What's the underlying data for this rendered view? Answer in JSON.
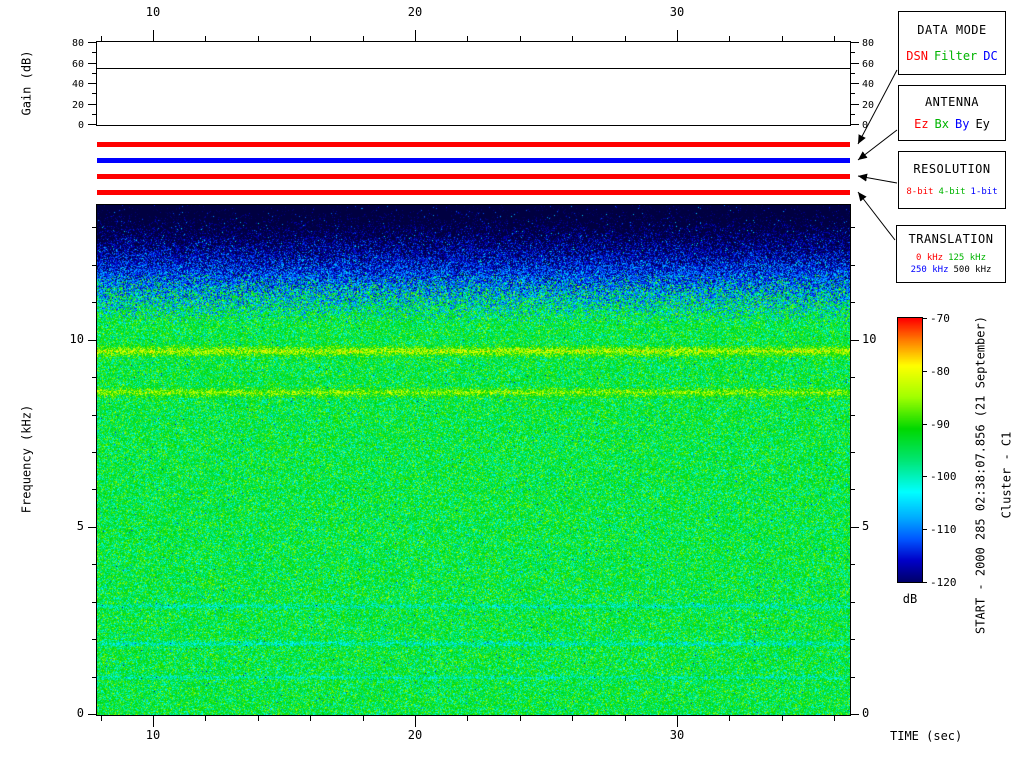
{
  "figure": {
    "time_axis_label": "TIME (sec)",
    "colorbar_unit": "dB",
    "start_label": "START - 2000 285 02:38:07.856 (21 September)",
    "spacecraft_label": "Cluster - C1"
  },
  "legend_boxes": [
    {
      "title": "DATA MODE",
      "rows": [
        [
          {
            "label": "DSN",
            "color": "#ff0000"
          },
          {
            "label": "Filter",
            "color": "#00b400"
          },
          {
            "label": "DC",
            "color": "#0000ff"
          }
        ]
      ]
    },
    {
      "title": "ANTENNA",
      "rows": [
        [
          {
            "label": "Ez",
            "color": "#ff0000"
          },
          {
            "label": "Bx",
            "color": "#00b400"
          },
          {
            "label": "By",
            "color": "#0000ff"
          },
          {
            "label": "Ey",
            "color": "#000000"
          }
        ]
      ]
    },
    {
      "title": "RESOLUTION",
      "rows": [
        [
          {
            "label": "8-bit",
            "color": "#ff0000"
          },
          {
            "label": "4-bit",
            "color": "#00b400"
          },
          {
            "label": "1-bit",
            "color": "#0000ff"
          }
        ]
      ]
    },
    {
      "title": "TRANSLATION",
      "rows": [
        [
          {
            "label": "0 kHz",
            "color": "#ff0000"
          },
          {
            "label": "125 kHz",
            "color": "#00b400"
          }
        ],
        [
          {
            "label": "250 kHz",
            "color": "#0000ff"
          },
          {
            "label": "500 kHz",
            "color": "#000000"
          }
        ]
      ]
    }
  ],
  "status_bars": [
    {
      "name": "data-mode-status-bar",
      "value": "DSN",
      "color": "#ff0000"
    },
    {
      "name": "antenna-status-bar",
      "value": "By",
      "color": "#0000ff"
    },
    {
      "name": "resolution-status-bar",
      "value": "8-bit",
      "color": "#ff0000"
    },
    {
      "name": "translation-status-bar",
      "value": "0 kHz",
      "color": "#ff0000"
    }
  ],
  "chart_data": [
    {
      "id": "gain-plot",
      "type": "line",
      "ylabel": "Gain (dB)",
      "y_range": [
        0,
        80
      ],
      "y_ticks": [
        0,
        20,
        40,
        60,
        80
      ],
      "y_minor_ticks": [
        10,
        30,
        50,
        70
      ],
      "x_range": [
        7.86,
        36.6
      ],
      "x_ticks": [
        10,
        20,
        30
      ],
      "x_minor_step": 2,
      "series": [
        {
          "name": "receiver-gain",
          "style": "constant-line",
          "value_db": 55
        }
      ]
    },
    {
      "id": "spectrogram",
      "type": "heatmap",
      "xlabel": "TIME (sec)",
      "ylabel": "Frequency (kHz)",
      "x_range": [
        7.86,
        36.6
      ],
      "x_ticks": [
        10,
        20,
        30
      ],
      "x_minor_step": 2,
      "y_range": [
        0,
        13.6
      ],
      "y_ticks": [
        0,
        5,
        10
      ],
      "y_minor_step": 1,
      "noise_floor_db": -94,
      "noise_spread_db": 11,
      "noise_cutoff_khz": 11.1,
      "cutoff_jitter_khz": 0.7,
      "background_db": -122,
      "bands": [
        {
          "freq_khz": 9.7,
          "width_khz": 0.18,
          "boost_db": 10
        },
        {
          "freq_khz": 8.6,
          "width_khz": 0.15,
          "boost_db": 8
        },
        {
          "freq_khz": 2.9,
          "width_khz": 0.1,
          "boost_db": -5
        },
        {
          "freq_khz": 1.9,
          "width_khz": 0.1,
          "boost_db": -6
        },
        {
          "freq_khz": 1.0,
          "width_khz": 0.08,
          "boost_db": -5
        }
      ],
      "colorbar": {
        "range_db": [
          -120,
          -70
        ],
        "ticks": [
          -70,
          -80,
          -90,
          -100,
          -110,
          -120
        ],
        "unit": "dB",
        "stops": [
          {
            "db": -70,
            "color": "#ff0000"
          },
          {
            "db": -74,
            "color": "#ff7800"
          },
          {
            "db": -79,
            "color": "#ffff00"
          },
          {
            "db": -85,
            "color": "#a0ff00"
          },
          {
            "db": -91,
            "color": "#00d800"
          },
          {
            "db": -97,
            "color": "#00e673"
          },
          {
            "db": -103,
            "color": "#00ffff"
          },
          {
            "db": -108,
            "color": "#00aaff"
          },
          {
            "db": -112,
            "color": "#0055ff"
          },
          {
            "db": -116,
            "color": "#0000c8"
          },
          {
            "db": -119,
            "color": "#000082"
          },
          {
            "db": -122,
            "color": "#000041"
          }
        ]
      }
    }
  ]
}
